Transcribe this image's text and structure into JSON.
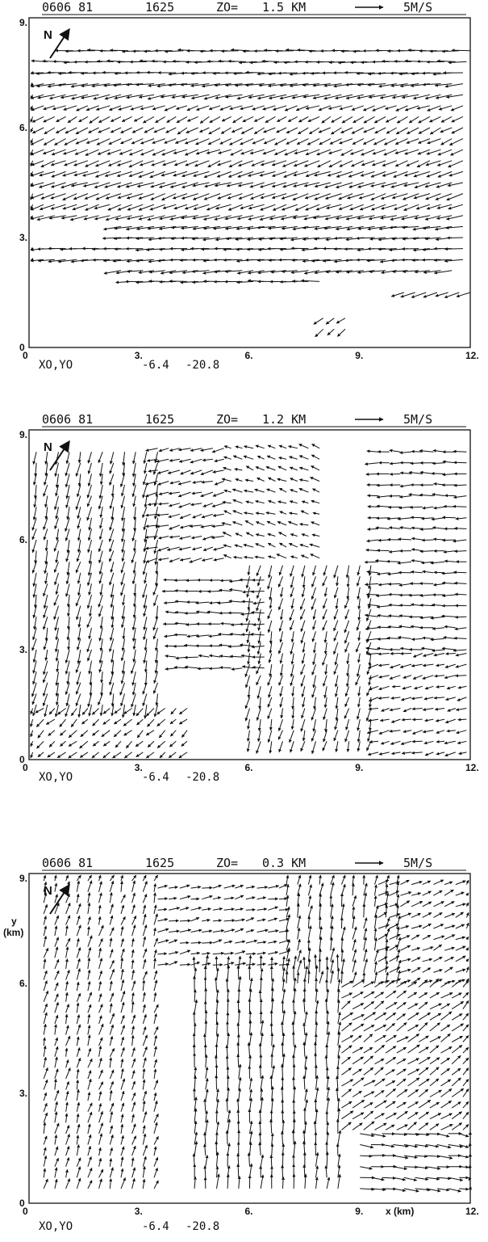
{
  "chart_data": [
    {
      "type": "vector-field",
      "header": {
        "date": "0606 81",
        "time": "1625",
        "level_label": "ZO=",
        "level_value": "1.5 KM",
        "scale_label": "5M/S"
      },
      "north_label": "N",
      "xlim": [
        0,
        12
      ],
      "ylim": [
        0,
        9
      ],
      "x_ticks": [
        "0",
        "3.",
        "6.",
        "9.",
        "12."
      ],
      "y_ticks": [
        "0",
        "3.",
        "6.",
        "9."
      ],
      "origin": {
        "label": "XO,YO",
        "x0": "-6.4",
        "y0": "-20.8"
      },
      "xlabel": "",
      "ylabel": "",
      "flow_description_direction_deg": 262,
      "rows": [
        {
          "y": 8.1,
          "x": [
            1.2,
            12.0
          ],
          "u": -2.6,
          "v": 0.0
        },
        {
          "y": 7.8,
          "x": [
            0.5,
            12.0
          ],
          "u": -2.5,
          "v": 0.0
        },
        {
          "y": 7.5,
          "x": [
            0.1,
            12.0
          ],
          "u": -2.7,
          "v": -0.1
        },
        {
          "y": 7.2,
          "x": [
            0.1,
            12.0
          ],
          "u": -2.6,
          "v": -0.3
        },
        {
          "y": 6.9,
          "x": [
            0.1,
            12.0
          ],
          "u": -2.4,
          "v": -0.5
        },
        {
          "y": 6.6,
          "x": [
            0.1,
            12.0
          ],
          "u": -1.8,
          "v": -0.6
        },
        {
          "y": 6.3,
          "x": [
            0.1,
            12.0
          ],
          "u": -1.5,
          "v": -0.8
        },
        {
          "y": 6.0,
          "x": [
            0.1,
            12.0
          ],
          "u": -1.6,
          "v": -0.8
        },
        {
          "y": 5.7,
          "x": [
            0.1,
            12.0
          ],
          "u": -1.8,
          "v": -0.8
        },
        {
          "y": 5.4,
          "x": [
            0.1,
            12.0
          ],
          "u": -1.9,
          "v": -0.7
        },
        {
          "y": 5.1,
          "x": [
            0.1,
            12.0
          ],
          "u": -2.0,
          "v": -0.8
        },
        {
          "y": 4.8,
          "x": [
            0.1,
            12.0
          ],
          "u": -2.2,
          "v": -0.7
        },
        {
          "y": 4.5,
          "x": [
            0.1,
            12.0
          ],
          "u": -2.3,
          "v": -0.6
        },
        {
          "y": 4.2,
          "x": [
            0.1,
            12.0
          ],
          "u": -2.2,
          "v": -0.8
        },
        {
          "y": 3.9,
          "x": [
            0.1,
            12.0
          ],
          "u": -2.1,
          "v": -0.7
        },
        {
          "y": 3.6,
          "x": [
            0.1,
            12.0
          ],
          "u": -2.4,
          "v": -0.5
        },
        {
          "y": 3.3,
          "x": [
            2.5,
            12.0
          ],
          "u": -2.5,
          "v": -0.3
        },
        {
          "y": 3.0,
          "x": [
            2.5,
            12.0
          ],
          "u": -2.5,
          "v": -0.2
        },
        {
          "y": 2.7,
          "x": [
            0.1,
            12.0
          ],
          "u": -2.6,
          "v": -0.1
        },
        {
          "y": 2.4,
          "x": [
            0.1,
            12.0
          ],
          "u": -2.6,
          "v": -0.2
        },
        {
          "y": 2.1,
          "x": [
            2.5,
            11.7
          ],
          "u": -2.4,
          "v": -0.3
        },
        {
          "y": 1.8,
          "x": [
            2.8,
            8.0
          ],
          "u": -2.5,
          "v": 0.0
        },
        {
          "y": 1.5,
          "x": [
            10.2,
            12.0
          ],
          "u": -2.0,
          "v": -0.6
        },
        {
          "y": 0.8,
          "x": [
            8.0,
            8.8
          ],
          "u": -1.2,
          "v": -0.8
        },
        {
          "y": 0.5,
          "x": [
            8.0,
            8.6
          ],
          "u": -1.0,
          "v": -1.0
        }
      ]
    },
    {
      "type": "vector-field",
      "header": {
        "date": "0606 81",
        "time": "1625",
        "level_label": "ZO=",
        "level_value": "1.2 KM",
        "scale_label": "5M/S"
      },
      "north_label": "N",
      "xlim": [
        0,
        12
      ],
      "ylim": [
        0,
        9
      ],
      "x_ticks": [
        "0",
        "3.",
        "6.",
        "9.",
        "12."
      ],
      "y_ticks": [
        "0",
        "3.",
        "6.",
        "9."
      ],
      "origin": {
        "label": "XO,YO",
        "x0": "-6.4",
        "y0": "-20.8"
      },
      "xlabel": "",
      "ylabel": "",
      "regions": [
        {
          "x": [
            0.2,
            3.5
          ],
          "y": [
            1.5,
            8.6
          ],
          "u": -0.4,
          "v": -1.8
        },
        {
          "x": [
            3.5,
            5.5
          ],
          "y": [
            5.5,
            8.6
          ],
          "u": -1.6,
          "v": -0.4
        },
        {
          "x": [
            5.5,
            8.0
          ],
          "y": [
            5.5,
            8.6
          ],
          "u": -1.2,
          "v": 0.4
        },
        {
          "x": [
            4.0,
            6.5
          ],
          "y": [
            2.5,
            5.0
          ],
          "u": -1.8,
          "v": 0.0
        },
        {
          "x": [
            6.0,
            9.5
          ],
          "y": [
            0.5,
            5.5
          ],
          "u": -0.4,
          "v": -1.6
        },
        {
          "x": [
            9.5,
            12.0
          ],
          "y": [
            3.0,
            8.6
          ],
          "u": -1.8,
          "v": 0.0
        },
        {
          "x": [
            9.5,
            12.0
          ],
          "y": [
            0.2,
            3.0
          ],
          "u": -1.4,
          "v": -0.3
        },
        {
          "x": [
            0.1,
            4.5
          ],
          "y": [
            0.2,
            1.5
          ],
          "u": -1.0,
          "v": -0.9
        }
      ]
    },
    {
      "type": "vector-field",
      "header": {
        "date": "0606 81",
        "time": "1625",
        "level_label": "ZO=",
        "level_value": "0.3 KM",
        "scale_label": "5M/S"
      },
      "north_label": "N",
      "xlim": [
        0,
        12
      ],
      "ylim": [
        0,
        9
      ],
      "x_ticks": [
        "0",
        "3.",
        "6.",
        "9.",
        "12."
      ],
      "y_ticks": [
        "0",
        "3.",
        "6.",
        "9."
      ],
      "origin": {
        "label": "XO,YO",
        "x0": "-6.4",
        "y0": "-20.8"
      },
      "xlabel": "x (km)",
      "ylabel_line1": "y",
      "ylabel_line2": "(km)",
      "regions": [
        {
          "x": [
            0.4,
            3.5
          ],
          "y": [
            0.4,
            8.8
          ],
          "u": 0.4,
          "v": 1.4
        },
        {
          "x": [
            3.5,
            7.0
          ],
          "y": [
            6.5,
            8.8
          ],
          "u": 1.4,
          "v": 0.3
        },
        {
          "x": [
            4.5,
            8.5
          ],
          "y": [
            0.4,
            6.5
          ],
          "u": 0.1,
          "v": 1.9
        },
        {
          "x": [
            7.0,
            10.0
          ],
          "y": [
            6.0,
            8.8
          ],
          "u": 0.3,
          "v": 1.8
        },
        {
          "x": [
            8.5,
            12.0
          ],
          "y": [
            2.0,
            6.0
          ],
          "u": 1.5,
          "v": 1.0
        },
        {
          "x": [
            9.5,
            12.0
          ],
          "y": [
            6.0,
            8.8
          ],
          "u": 1.4,
          "v": 0.6
        },
        {
          "x": [
            9.0,
            12.0
          ],
          "y": [
            0.4,
            2.0
          ],
          "u": 2.0,
          "v": -0.2
        }
      ]
    }
  ]
}
